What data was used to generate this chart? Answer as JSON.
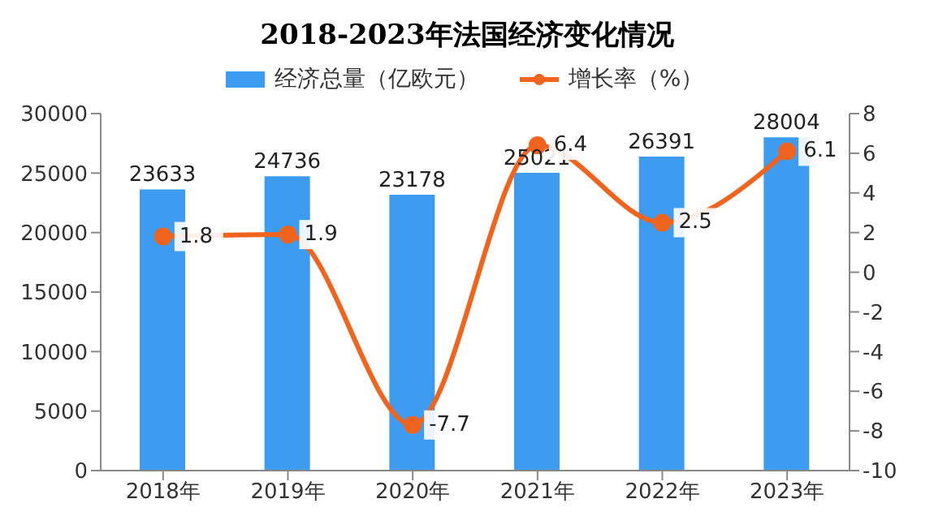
{
  "chart_data": {
    "type": "bar",
    "title": "2018-2023年法国经济变化情况",
    "categories": [
      "2018年",
      "2019年",
      "2020年",
      "2021年",
      "2022年",
      "2023年"
    ],
    "series": [
      {
        "name": "经济总量（亿欧元）",
        "color": "#3d9cf0",
        "values": [
          23633,
          24736,
          23178,
          25021,
          26391,
          28004
        ]
      },
      {
        "name": "增长率（%）",
        "type": "line",
        "axis": "y2",
        "color": "#f0641e",
        "values": [
          1.8,
          1.9,
          -7.7,
          6.4,
          2.5,
          6.1
        ]
      }
    ],
    "ylim": [
      0,
      30000
    ],
    "yticks": [
      0,
      5000,
      10000,
      15000,
      20000,
      25000,
      30000
    ],
    "y2lim": [
      -10,
      8
    ],
    "y2ticks": [
      -10,
      -8,
      -6,
      -4,
      -2,
      0,
      2,
      4,
      6,
      8
    ],
    "data_labels": true,
    "legend": "top",
    "grid": false,
    "marker": "circle"
  }
}
